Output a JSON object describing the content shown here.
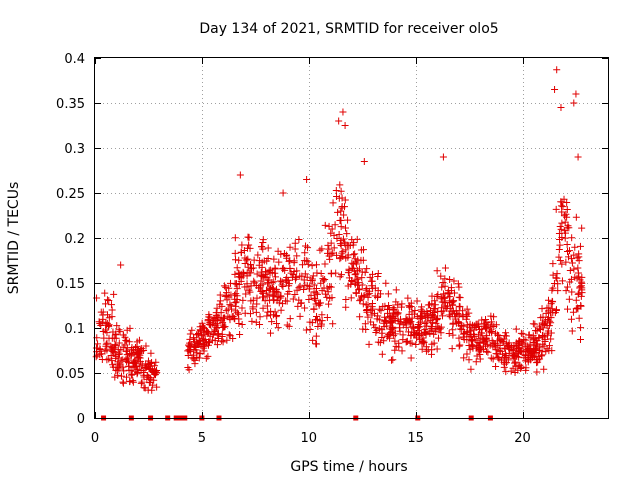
{
  "chart_data": {
    "type": "scatter",
    "title": "Day 134 of 2021, SRMTID for receiver olo5",
    "xlabel": "GPS time / hours",
    "ylabel": "SRMTID / TECUs",
    "xlim": [
      0,
      24
    ],
    "ylim": [
      0,
      0.4
    ],
    "x_ticks": [
      0,
      5,
      10,
      15,
      20
    ],
    "x_tick_labels": [
      "0",
      "5",
      "10",
      "15",
      "20"
    ],
    "y_ticks": [
      0,
      0.05,
      0.1,
      0.15,
      0.2,
      0.25,
      0.3,
      0.35,
      0.4
    ],
    "y_tick_labels": [
      "0",
      "0.05",
      "0.1",
      "0.15",
      "0.2",
      "0.25",
      "0.3",
      "0.35",
      "0.4"
    ],
    "grid": true,
    "marker": "+",
    "marker_color": "#e00000",
    "zero_markers_x": [
      0.4,
      1.7,
      2.6,
      3.4,
      3.8,
      4.0,
      4.2,
      5.0,
      5.8,
      12.2,
      15.1,
      17.6,
      18.5
    ],
    "envelope": [
      {
        "x": 0.0,
        "base": 0.09,
        "spread": 0.05
      },
      {
        "x": 0.5,
        "base": 0.1,
        "spread": 0.05
      },
      {
        "x": 1.0,
        "base": 0.08,
        "spread": 0.06
      },
      {
        "x": 1.5,
        "base": 0.07,
        "spread": 0.04
      },
      {
        "x": 2.0,
        "base": 0.065,
        "spread": 0.035
      },
      {
        "x": 2.5,
        "base": 0.055,
        "spread": 0.03
      },
      {
        "x": 2.9,
        "base": 0.05,
        "spread": 0.03
      },
      {
        "x": 4.3,
        "base": 0.07,
        "spread": 0.03
      },
      {
        "x": 5.0,
        "base": 0.09,
        "spread": 0.03
      },
      {
        "x": 6.0,
        "base": 0.11,
        "spread": 0.04
      },
      {
        "x": 6.8,
        "base": 0.15,
        "spread": 0.07
      },
      {
        "x": 7.5,
        "base": 0.16,
        "spread": 0.06
      },
      {
        "x": 8.5,
        "base": 0.14,
        "spread": 0.06
      },
      {
        "x": 9.5,
        "base": 0.16,
        "spread": 0.06
      },
      {
        "x": 10.5,
        "base": 0.13,
        "spread": 0.06
      },
      {
        "x": 11.5,
        "base": 0.21,
        "spread": 0.09
      },
      {
        "x": 12.5,
        "base": 0.14,
        "spread": 0.06
      },
      {
        "x": 13.5,
        "base": 0.11,
        "spread": 0.05
      },
      {
        "x": 14.5,
        "base": 0.1,
        "spread": 0.04
      },
      {
        "x": 15.5,
        "base": 0.1,
        "spread": 0.04
      },
      {
        "x": 16.5,
        "base": 0.13,
        "spread": 0.06
      },
      {
        "x": 17.5,
        "base": 0.09,
        "spread": 0.04
      },
      {
        "x": 18.5,
        "base": 0.09,
        "spread": 0.04
      },
      {
        "x": 19.5,
        "base": 0.07,
        "spread": 0.03
      },
      {
        "x": 20.5,
        "base": 0.08,
        "spread": 0.03
      },
      {
        "x": 21.2,
        "base": 0.1,
        "spread": 0.05
      },
      {
        "x": 21.8,
        "base": 0.2,
        "spread": 0.1
      },
      {
        "x": 22.3,
        "base": 0.16,
        "spread": 0.08
      },
      {
        "x": 22.8,
        "base": 0.15,
        "spread": 0.07
      }
    ],
    "gap_ranges": [
      [
        2.9,
        4.3
      ]
    ],
    "x_range_data": [
      0,
      22.8
    ],
    "peak_points": [
      {
        "x": 11.6,
        "y": 0.34
      },
      {
        "x": 11.4,
        "y": 0.33
      },
      {
        "x": 11.7,
        "y": 0.325
      },
      {
        "x": 12.6,
        "y": 0.285
      },
      {
        "x": 16.3,
        "y": 0.29
      },
      {
        "x": 21.6,
        "y": 0.387
      },
      {
        "x": 21.5,
        "y": 0.365
      },
      {
        "x": 21.8,
        "y": 0.345
      },
      {
        "x": 22.5,
        "y": 0.36
      },
      {
        "x": 22.4,
        "y": 0.35
      },
      {
        "x": 22.6,
        "y": 0.29
      },
      {
        "x": 6.8,
        "y": 0.27
      },
      {
        "x": 9.9,
        "y": 0.265
      },
      {
        "x": 8.8,
        "y": 0.25
      },
      {
        "x": 1.2,
        "y": 0.17
      }
    ]
  }
}
